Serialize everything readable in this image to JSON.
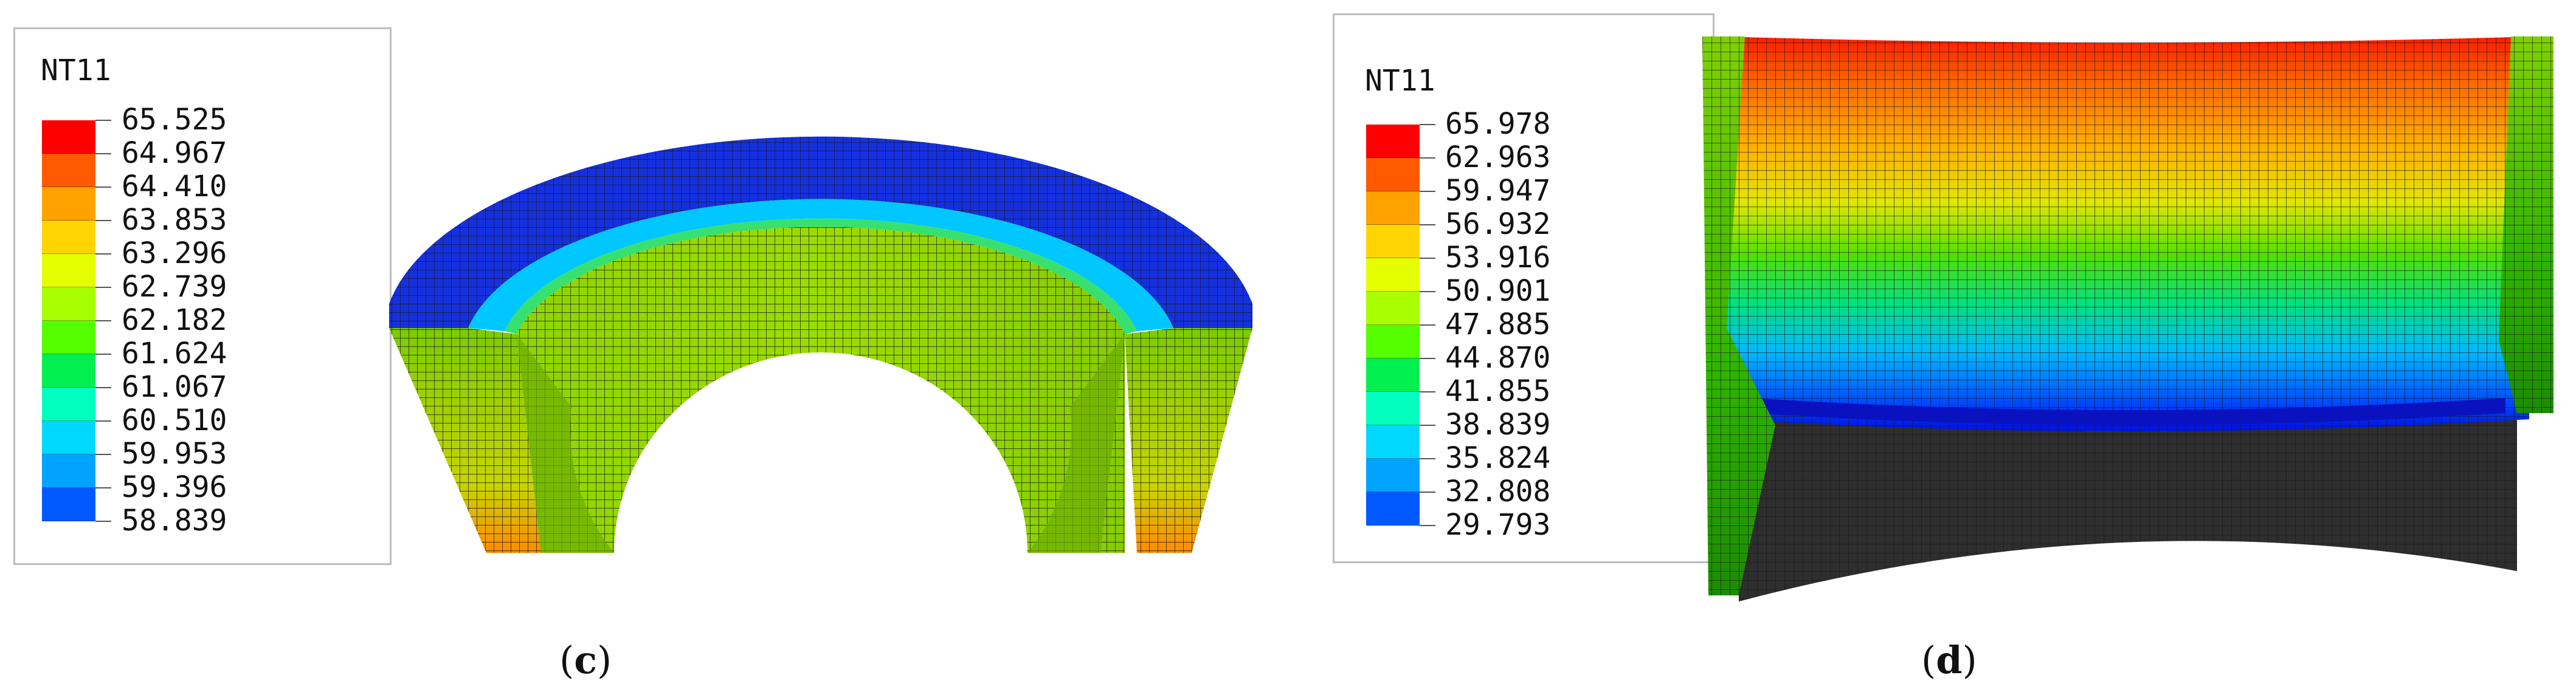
{
  "panels": [
    {
      "id": "c",
      "legend": {
        "title": "NT11",
        "values": [
          "65.525",
          "64.967",
          "64.410",
          "63.853",
          "63.296",
          "62.739",
          "62.182",
          "61.624",
          "61.067",
          "60.510",
          "59.953",
          "59.396",
          "58.839"
        ]
      },
      "caption": {
        "open": "(",
        "letter": "c",
        "close": ")"
      }
    },
    {
      "id": "d",
      "legend": {
        "title": "NT11",
        "values": [
          "65.978",
          "62.963",
          "59.947",
          "56.932",
          "53.916",
          "50.901",
          "47.885",
          "44.870",
          "41.855",
          "38.839",
          "35.824",
          "32.808",
          "29.793"
        ]
      },
      "caption": {
        "open": "(",
        "letter": "d",
        "close": ")"
      }
    }
  ],
  "colors": {
    "scale": [
      "#ff0000",
      "#ff5a00",
      "#ffa200",
      "#ffd400",
      "#e6ff00",
      "#a8ff00",
      "#55ff00",
      "#00f050",
      "#00ffbf",
      "#00d8ff",
      "#00a4ff",
      "#0059ff",
      "#0000ff"
    ],
    "mesh": "#1a1a1a",
    "unheated": "#2a2a2a"
  }
}
